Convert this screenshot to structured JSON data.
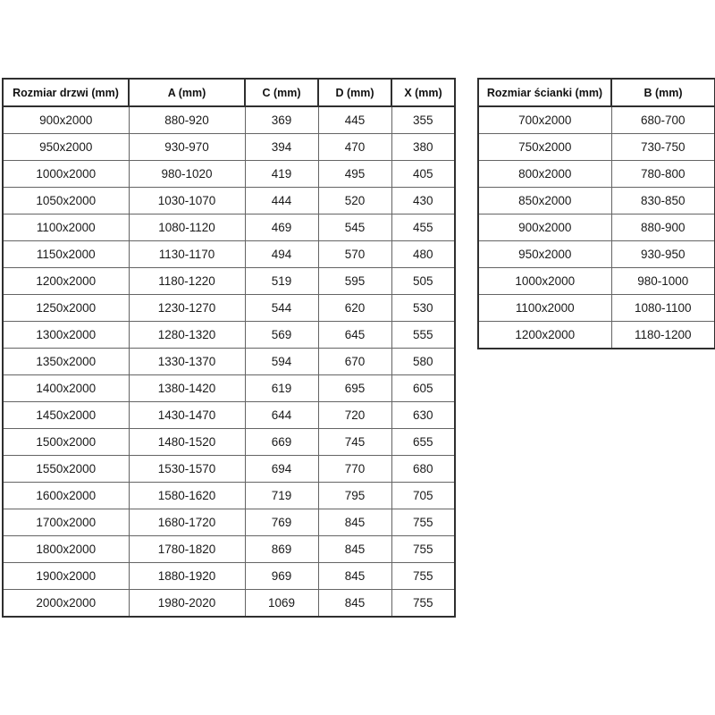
{
  "page": {
    "background_color": "#ffffff",
    "text_color": "#1a1a1a",
    "header_border_color": "#2f2f2f",
    "cell_border_color": "#646464"
  },
  "doors_table": {
    "headers": [
      "Rozmiar drzwi (mm)",
      "A (mm)",
      "C (mm)",
      "D (mm)",
      "X (mm)"
    ],
    "rows": [
      [
        "900x2000",
        "880-920",
        "369",
        "445",
        "355"
      ],
      [
        "950x2000",
        "930-970",
        "394",
        "470",
        "380"
      ],
      [
        "1000x2000",
        "980-1020",
        "419",
        "495",
        "405"
      ],
      [
        "1050x2000",
        "1030-1070",
        "444",
        "520",
        "430"
      ],
      [
        "1100x2000",
        "1080-1120",
        "469",
        "545",
        "455"
      ],
      [
        "1150x2000",
        "1130-1170",
        "494",
        "570",
        "480"
      ],
      [
        "1200x2000",
        "1180-1220",
        "519",
        "595",
        "505"
      ],
      [
        "1250x2000",
        "1230-1270",
        "544",
        "620",
        "530"
      ],
      [
        "1300x2000",
        "1280-1320",
        "569",
        "645",
        "555"
      ],
      [
        "1350x2000",
        "1330-1370",
        "594",
        "670",
        "580"
      ],
      [
        "1400x2000",
        "1380-1420",
        "619",
        "695",
        "605"
      ],
      [
        "1450x2000",
        "1430-1470",
        "644",
        "720",
        "630"
      ],
      [
        "1500x2000",
        "1480-1520",
        "669",
        "745",
        "655"
      ],
      [
        "1550x2000",
        "1530-1570",
        "694",
        "770",
        "680"
      ],
      [
        "1600x2000",
        "1580-1620",
        "719",
        "795",
        "705"
      ],
      [
        "1700x2000",
        "1680-1720",
        "769",
        "845",
        "755"
      ],
      [
        "1800x2000",
        "1780-1820",
        "869",
        "845",
        "755"
      ],
      [
        "1900x2000",
        "1880-1920",
        "969",
        "845",
        "755"
      ],
      [
        "2000x2000",
        "1980-2020",
        "1069",
        "845",
        "755"
      ]
    ]
  },
  "walls_table": {
    "headers": [
      "Rozmiar ścianki (mm)",
      "B (mm)"
    ],
    "rows": [
      [
        "700x2000",
        "680-700"
      ],
      [
        "750x2000",
        "730-750"
      ],
      [
        "800x2000",
        "780-800"
      ],
      [
        "850x2000",
        "830-850"
      ],
      [
        "900x2000",
        "880-900"
      ],
      [
        "950x2000",
        "930-950"
      ],
      [
        "1000x2000",
        "980-1000"
      ],
      [
        "1100x2000",
        "1080-1100"
      ],
      [
        "1200x2000",
        "1180-1200"
      ]
    ]
  }
}
